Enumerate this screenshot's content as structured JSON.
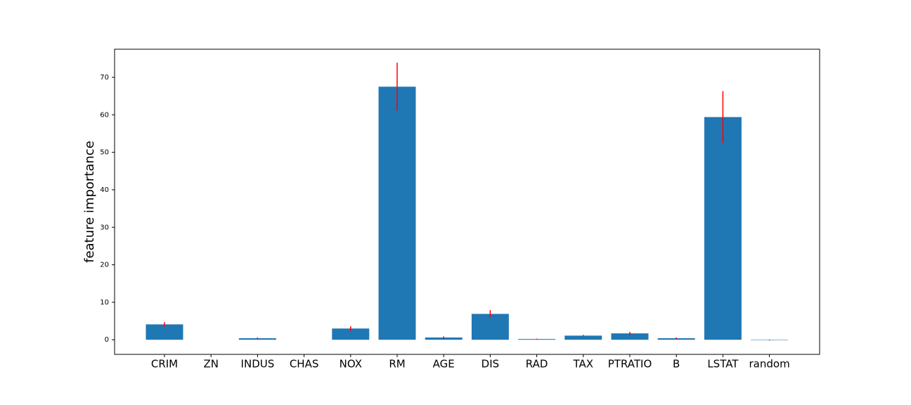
{
  "chart_data": {
    "type": "bar",
    "y_label": "feature importance",
    "categories": [
      "CRIM",
      "ZN",
      "INDUS",
      "CHAS",
      "NOX",
      "RM",
      "AGE",
      "DIS",
      "RAD",
      "TAX",
      "PTRATIO",
      "B",
      "LSTAT",
      "random"
    ],
    "values": [
      4.1,
      0,
      0.4,
      0,
      3.0,
      67.5,
      0.6,
      6.9,
      0.2,
      1.1,
      1.7,
      0.4,
      59.4,
      -0.1
    ],
    "errors": [
      0.6,
      0,
      0.2,
      0,
      0.6,
      6.4,
      0.3,
      1.0,
      0.1,
      0.2,
      0.4,
      0.2,
      6.9,
      0.1
    ],
    "color": "#1f77b4",
    "error_color": "#ff0000",
    "ylim": [
      -3.9,
      77.5
    ],
    "yticks": [
      0,
      10,
      20,
      30,
      40,
      50,
      60,
      70
    ],
    "grid": false
  }
}
